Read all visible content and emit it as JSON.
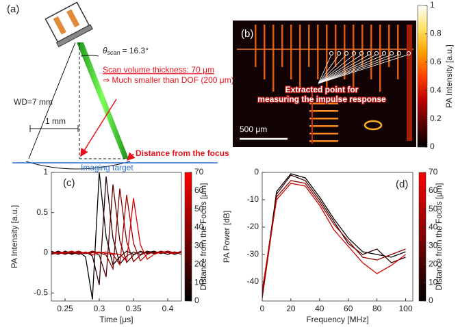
{
  "diagram": {
    "panel_label": "(a)",
    "theta_symbol": "θ",
    "theta_subscript": "scan",
    "theta_value": "= 16.3°",
    "scan_thickness": "Scan volume thickness: 70 μm",
    "dof_note": "⇒ Much smaller than DOF (200 μm)",
    "wd": "WD=7 mm",
    "width": "1 mm",
    "focus_distance": "Distance from the focus",
    "target": "Imaging target"
  },
  "image_panel": {
    "panel_label": "(b)",
    "annotation": "Extracted point for measuring the impulse response",
    "scale_bar": "500 μm",
    "colorbar": {
      "label": "PA Intensity [a.u.]",
      "lim": [
        0,
        1
      ],
      "ticks": [
        0,
        0.2,
        0.4,
        0.6,
        0.8,
        1
      ],
      "colors": [
        "#000000",
        "#5a0000",
        "#c00000",
        "#ff4000",
        "#ffa000",
        "#ffe060",
        "#ffffff"
      ]
    }
  },
  "chart_data": [
    {
      "type": "line",
      "panel_label": "(c)",
      "x_label": "Time [μs]",
      "y_label": "PA Intensity [a.u.]",
      "x": [
        0.23,
        0.24,
        0.25,
        0.26,
        0.27,
        0.28,
        0.29,
        0.3,
        0.31,
        0.32,
        0.33,
        0.34,
        0.35,
        0.36,
        0.37,
        0.38,
        0.39,
        0.4,
        0.41,
        0.42
      ],
      "xlim": [
        0.23,
        0.42
      ],
      "xticks": [
        0.25,
        0.3,
        0.35,
        0.4
      ],
      "ylim": [
        -0.6,
        1.0
      ],
      "yticks": [
        -0.5,
        0,
        0.5,
        1
      ],
      "series": [
        {
          "color": "#000000",
          "values": [
            0.01,
            -0.02,
            0.02,
            -0.01,
            0.01,
            -0.05,
            -0.58,
            1.0,
            0.2,
            -0.15,
            -0.05,
            0.02,
            -0.02,
            0.01,
            0.0,
            0.02,
            -0.01,
            0.01,
            -0.02,
            0.01
          ]
        },
        {
          "color": "#2b0000",
          "values": [
            -0.01,
            0.02,
            -0.01,
            0.01,
            -0.02,
            0.01,
            -0.04,
            -0.4,
            0.95,
            0.18,
            -0.14,
            -0.04,
            0.01,
            -0.02,
            0.02,
            0.0,
            0.01,
            -0.02,
            0.01,
            0.0
          ]
        },
        {
          "color": "#560000",
          "values": [
            0.02,
            -0.01,
            0.01,
            -0.02,
            0.01,
            0.0,
            0.01,
            -0.03,
            -0.3,
            0.85,
            0.15,
            -0.12,
            -0.03,
            0.02,
            -0.01,
            0.01,
            0.0,
            0.02,
            -0.01,
            0.01
          ]
        },
        {
          "color": "#810000",
          "values": [
            0.0,
            0.01,
            -0.02,
            0.01,
            0.0,
            -0.01,
            0.02,
            0.0,
            -0.03,
            -0.2,
            0.8,
            0.14,
            -0.11,
            -0.03,
            0.01,
            -0.01,
            0.02,
            0.0,
            0.01,
            -0.02
          ]
        },
        {
          "color": "#ac0000",
          "values": [
            -0.02,
            0.0,
            0.01,
            0.0,
            0.02,
            -0.01,
            0.0,
            0.01,
            -0.01,
            -0.02,
            -0.15,
            0.72,
            0.12,
            -0.1,
            -0.02,
            0.01,
            -0.01,
            0.02,
            0.0,
            0.01
          ]
        },
        {
          "color": "#d70000",
          "values": [
            0.01,
            -0.01,
            0.0,
            0.02,
            -0.01,
            0.01,
            -0.02,
            0.0,
            0.01,
            -0.01,
            -0.02,
            -0.1,
            0.68,
            0.1,
            -0.08,
            -0.02,
            0.01,
            0.0,
            -0.01,
            0.02
          ]
        }
      ],
      "colorbar": {
        "label": "Distance from the Focus [μm]",
        "lim": [
          0,
          70
        ],
        "ticks": [
          0,
          10,
          20,
          30,
          40,
          50,
          60,
          70
        ],
        "colors": [
          "#000000",
          "#ff0000"
        ]
      }
    },
    {
      "type": "line",
      "panel_label": "(d)",
      "x_label": "Frequency [MHz]",
      "y_label": "PA Power [dB]",
      "x": [
        0,
        10,
        20,
        30,
        40,
        50,
        60,
        70,
        80,
        90,
        100
      ],
      "xlim": [
        0,
        105
      ],
      "xticks": [
        0,
        20,
        40,
        60,
        80,
        100
      ],
      "ylim": [
        -47,
        0
      ],
      "yticks": [
        -40,
        -30,
        -20,
        -10,
        0
      ],
      "series": [
        {
          "color": "#000000",
          "values": [
            -45,
            -7,
            -0.5,
            -2,
            -9,
            -17,
            -24,
            -29,
            -30,
            -31,
            -29
          ]
        },
        {
          "color": "#3a0000",
          "values": [
            -44,
            -8,
            -1,
            -3,
            -10,
            -18,
            -26,
            -30,
            -28,
            -33,
            -31
          ]
        },
        {
          "color": "#8a0000",
          "values": [
            -46,
            -9,
            -3,
            -4,
            -11,
            -19,
            -25,
            -31,
            -32,
            -30,
            -28
          ]
        },
        {
          "color": "#d00000",
          "values": [
            -43,
            -10,
            -4,
            -5,
            -12,
            -21,
            -27,
            -33,
            -37,
            -34,
            -30
          ]
        }
      ],
      "colorbar": {
        "label": "Distance from the Focus [μm]",
        "lim": [
          0,
          70
        ],
        "ticks": [
          0,
          10,
          20,
          30,
          40,
          50,
          60,
          70
        ],
        "colors": [
          "#000000",
          "#ff0000"
        ]
      }
    }
  ]
}
